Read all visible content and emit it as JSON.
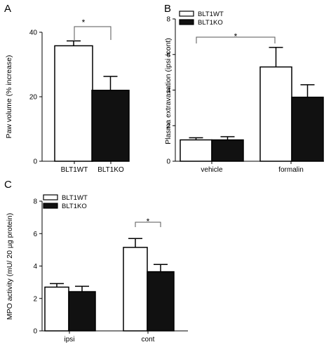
{
  "chart_data": [
    {
      "panel": "A",
      "type": "bar",
      "categories": [
        "BLT1WT",
        "BLT1KO"
      ],
      "series": [
        {
          "values": [
            35.8,
            22.0
          ],
          "errors": [
            1.5,
            4.3
          ],
          "fills": [
            "#ffffff",
            "#111111"
          ]
        }
      ],
      "ylabel": "Paw volume (% increase)",
      "ylim": [
        0,
        40
      ],
      "yticks": [
        "0",
        "20",
        "40"
      ],
      "significance": [
        {
          "from": "BLT1WT",
          "to": "BLT1KO",
          "label": "*"
        }
      ]
    },
    {
      "panel": "B",
      "type": "bar",
      "categories": [
        "vehicle",
        "formalin"
      ],
      "series": [
        {
          "name": "BLT1WT",
          "values": [
            1.2,
            5.3
          ],
          "errors": [
            0.12,
            1.1
          ],
          "fill": "#ffffff"
        },
        {
          "name": "BLT1KO",
          "values": [
            1.2,
            3.6
          ],
          "errors": [
            0.18,
            0.7
          ],
          "fill": "#111111"
        }
      ],
      "ylabel": "Plasma extravasation (ipsi /cont)",
      "ylim": [
        0,
        8
      ],
      "yticks": [
        "0",
        "2",
        "4",
        "6",
        "8"
      ],
      "legend": "top-left",
      "significance": [
        {
          "from": "vehicle/BLT1WT",
          "to": "formalin/BLT1WT",
          "label": "*"
        }
      ]
    },
    {
      "panel": "C",
      "type": "bar",
      "categories": [
        "ipsi",
        "cont"
      ],
      "series": [
        {
          "name": "BLT1WT",
          "values": [
            2.7,
            5.15
          ],
          "errors": [
            0.22,
            0.55
          ],
          "fill": "#ffffff"
        },
        {
          "name": "BLT1KO",
          "values": [
            2.42,
            3.65
          ],
          "errors": [
            0.33,
            0.45
          ],
          "fill": "#111111"
        }
      ],
      "ylabel": "MPO activity (mU/ 20 µg protein)",
      "ylim": [
        0,
        8
      ],
      "yticks": [
        "0",
        "2",
        "4",
        "6",
        "8"
      ],
      "legend": "top-left",
      "significance": [
        {
          "from": "cont/BLT1WT",
          "to": "cont/BLT1KO",
          "label": "*"
        }
      ]
    }
  ]
}
